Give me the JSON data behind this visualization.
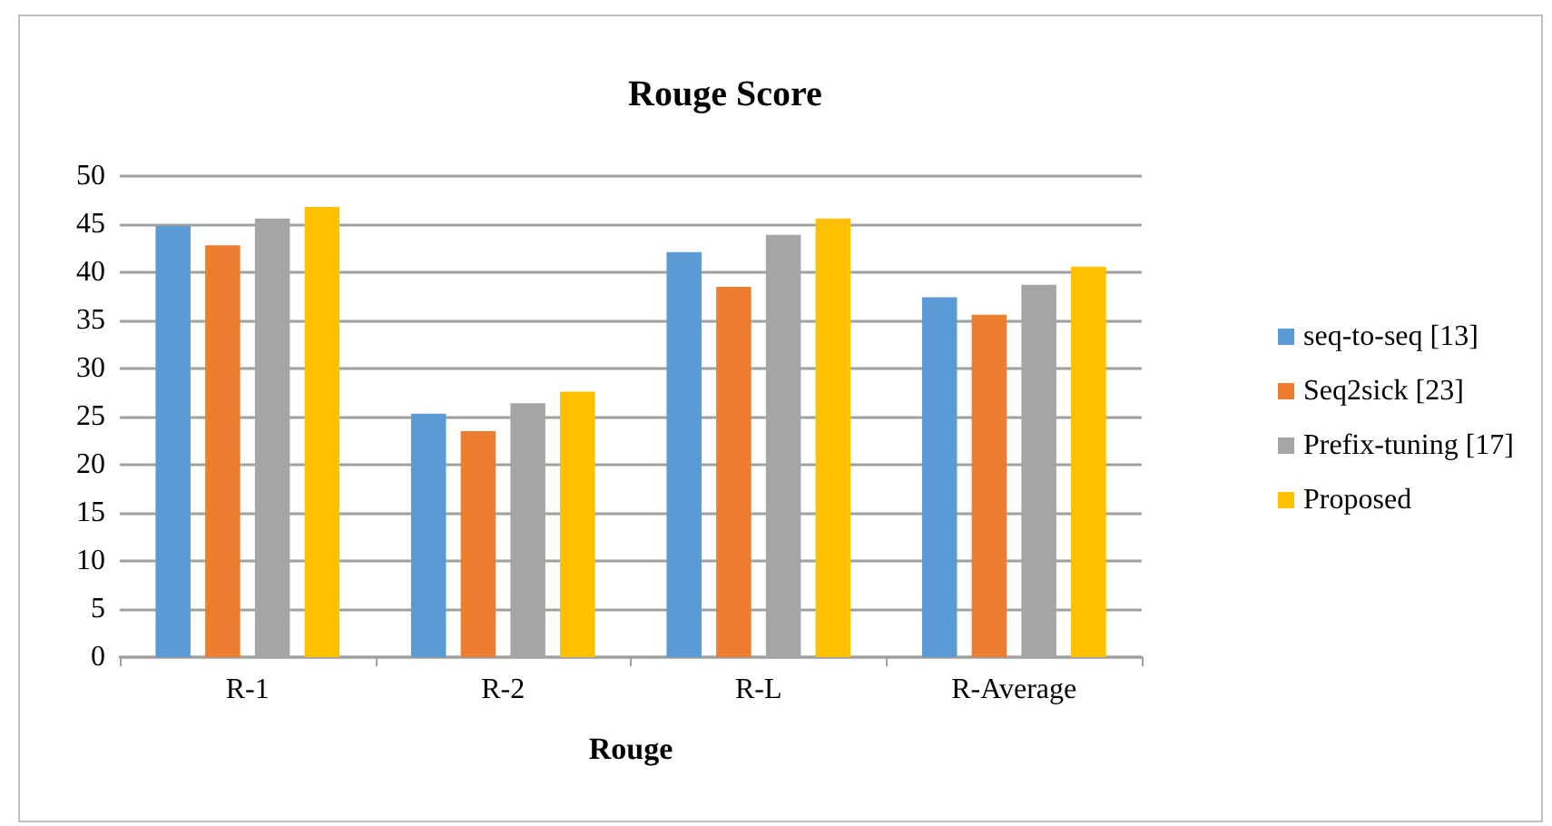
{
  "chart_data": {
    "type": "bar",
    "title": "Rouge Score",
    "xlabel": "Rouge",
    "categories": [
      "R-1",
      "R-2",
      "R-L",
      "R-Average"
    ],
    "series": [
      {
        "name": "seq-to-seq [13]",
        "color": "#5b9bd5",
        "values": [
          44.8,
          25.3,
          42.1,
          37.4
        ]
      },
      {
        "name": "Seq2sick [23]",
        "color": "#ed7d31",
        "values": [
          42.8,
          23.5,
          38.5,
          35.6
        ]
      },
      {
        "name": "Prefix-tuning [17]",
        "color": "#a5a5a5",
        "values": [
          45.6,
          26.4,
          43.9,
          38.7
        ]
      },
      {
        "name": "Proposed",
        "color": "#ffc000",
        "values": [
          46.8,
          27.6,
          45.6,
          40.6
        ]
      }
    ],
    "ylim": [
      0,
      50
    ],
    "yticks": [
      0,
      5,
      10,
      15,
      20,
      25,
      30,
      35,
      40,
      45,
      50
    ],
    "grid": "y",
    "legend": "right"
  }
}
